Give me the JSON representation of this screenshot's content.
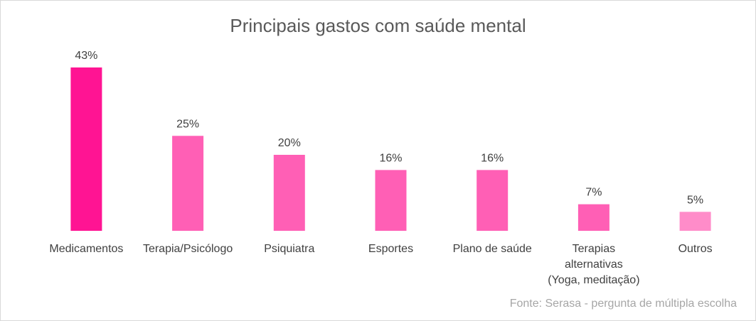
{
  "chart_data": {
    "type": "bar",
    "title": "Principais gastos com saúde mental",
    "categories": [
      "Medicamentos",
      "Terapia/Psicólogo",
      "Psiquiatra",
      "Esportes",
      "Plano de saúde",
      "Terapias alternativas (Yoga, meditação)",
      "Outros"
    ],
    "category_lines": [
      [
        "Medicamentos"
      ],
      [
        "Terapia/Psicólogo"
      ],
      [
        "Psiquiatra"
      ],
      [
        "Esportes"
      ],
      [
        "Plano de saúde"
      ],
      [
        "Terapias",
        "alternativas",
        "(Yoga, meditação)"
      ],
      [
        "Outros"
      ]
    ],
    "values": [
      43,
      25,
      20,
      16,
      16,
      7,
      5
    ],
    "value_labels": [
      "43%",
      "25%",
      "20%",
      "16%",
      "16%",
      "7%",
      "5%"
    ],
    "colors": [
      "#ff1493",
      "#ff5fb5",
      "#ff5fb5",
      "#ff5fb5",
      "#ff5fb5",
      "#ff5fb5",
      "#ff8cc9"
    ],
    "ylim": [
      0,
      43
    ],
    "xlabel": "",
    "ylabel": "",
    "grid": false,
    "legend": "none"
  },
  "source_note": "Fonte: Serasa - pergunta de múltipla escolha"
}
